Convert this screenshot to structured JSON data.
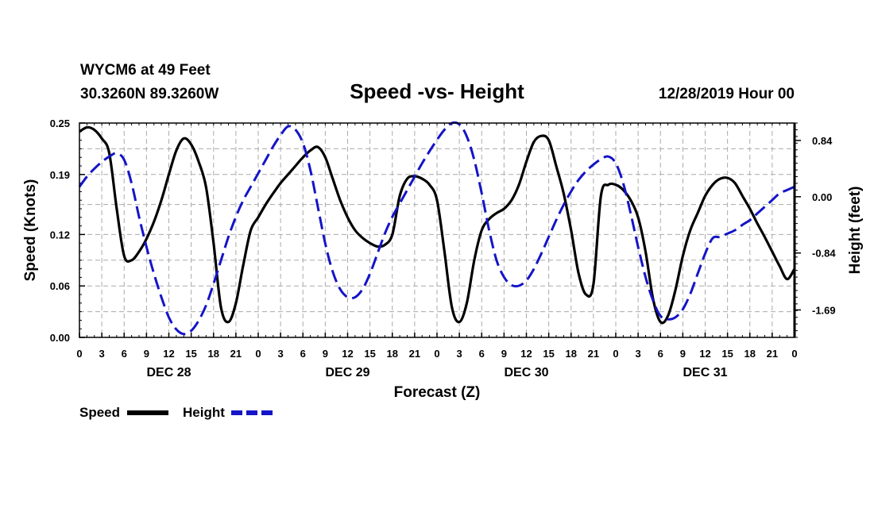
{
  "header": {
    "station": "WYCM6 at 49 Feet",
    "coords": "30.3260N 89.3260W",
    "title": "Speed -vs- Height",
    "timestamp": "12/28/2019 Hour 00"
  },
  "legend": {
    "speed_label": "Speed",
    "height_label": "Height"
  },
  "colors": {
    "speed": "#000000",
    "height": "#1414c8",
    "grid": "#aaaaaa"
  },
  "chart_data": {
    "type": "line",
    "title": "Speed -vs- Height",
    "xlabel": "Forecast (Z)",
    "ylabel": "Speed (Knots)",
    "ylabel_right": "Height (feet)",
    "xlim": [
      0,
      96
    ],
    "ylim": [
      0,
      0.25
    ],
    "ylim_right": [
      -2.1,
      1.1
    ],
    "x_ticks": [
      0,
      3,
      6,
      9,
      12,
      15,
      18,
      21,
      24,
      27,
      30,
      33,
      36,
      39,
      42,
      45,
      48,
      51,
      54,
      57,
      60,
      63,
      66,
      69,
      72,
      75,
      78,
      81,
      84,
      87,
      90,
      93,
      96
    ],
    "x_tick_labels": [
      "0",
      "3",
      "6",
      "9",
      "12",
      "15",
      "18",
      "21",
      "0",
      "3",
      "6",
      "9",
      "12",
      "15",
      "18",
      "21",
      "0",
      "3",
      "6",
      "9",
      "12",
      "15",
      "18",
      "21",
      "0",
      "3",
      "6",
      "9",
      "12",
      "15",
      "18",
      "21",
      "0"
    ],
    "date_labels": [
      {
        "x": 12,
        "text": "DEC 28"
      },
      {
        "x": 36,
        "text": "DEC 29"
      },
      {
        "x": 60,
        "text": "DEC 30"
      },
      {
        "x": 84,
        "text": "DEC 31"
      }
    ],
    "y_ticks": [
      0.0,
      0.06,
      0.12,
      0.19,
      0.25
    ],
    "y_tick_labels": [
      "0.00",
      "0.06",
      "0.12",
      "0.19",
      "0.25"
    ],
    "y_ticks_right": [
      0.84,
      0.0,
      -0.84,
      -1.69
    ],
    "y_tick_labels_right": [
      "0.84",
      "0.00",
      "-0.84",
      "-1.69"
    ],
    "grid": true,
    "series": [
      {
        "name": "Speed",
        "axis": "left",
        "style": "solid",
        "x": [
          0,
          1,
          2,
          3,
          4,
          5,
          6,
          7,
          8,
          9,
          10,
          11,
          12,
          13,
          14,
          15,
          16,
          17,
          18,
          19,
          20,
          21,
          22,
          23,
          24,
          25,
          26,
          27,
          28,
          29,
          30,
          31,
          32,
          33,
          34,
          35,
          36,
          37,
          38,
          39,
          40,
          41,
          42,
          43,
          44,
          45,
          46,
          47,
          48,
          49,
          50,
          51,
          52,
          53,
          54,
          55,
          56,
          57,
          58,
          59,
          60,
          61,
          62,
          63,
          64,
          65,
          66,
          67,
          68,
          69,
          70,
          71,
          72,
          73,
          74,
          75,
          76,
          77,
          78,
          79,
          80,
          81,
          82,
          83,
          84,
          85,
          86,
          87,
          88,
          89,
          90,
          91,
          92,
          93,
          94,
          95,
          96
        ],
        "values": [
          0.24,
          0.245,
          0.242,
          0.232,
          0.215,
          0.15,
          0.095,
          0.09,
          0.1,
          0.115,
          0.135,
          0.16,
          0.19,
          0.218,
          0.232,
          0.225,
          0.205,
          0.175,
          0.11,
          0.035,
          0.018,
          0.04,
          0.085,
          0.125,
          0.14,
          0.155,
          0.168,
          0.18,
          0.19,
          0.2,
          0.21,
          0.218,
          0.222,
          0.21,
          0.185,
          0.16,
          0.14,
          0.125,
          0.116,
          0.11,
          0.106,
          0.108,
          0.12,
          0.165,
          0.185,
          0.188,
          0.185,
          0.178,
          0.16,
          0.1,
          0.035,
          0.018,
          0.04,
          0.09,
          0.125,
          0.138,
          0.145,
          0.15,
          0.16,
          0.178,
          0.205,
          0.228,
          0.235,
          0.23,
          0.2,
          0.168,
          0.125,
          0.075,
          0.05,
          0.062,
          0.165,
          0.178,
          0.178,
          0.172,
          0.16,
          0.14,
          0.1,
          0.045,
          0.018,
          0.025,
          0.055,
          0.095,
          0.125,
          0.145,
          0.165,
          0.178,
          0.185,
          0.186,
          0.18,
          0.165,
          0.15,
          0.133,
          0.117,
          0.1,
          0.083,
          0.068,
          0.08
        ]
      },
      {
        "name": "Height",
        "axis": "right",
        "style": "dashed",
        "x": [
          0,
          1,
          2,
          3,
          4,
          5,
          6,
          7,
          8,
          9,
          10,
          11,
          12,
          13,
          14,
          15,
          16,
          17,
          18,
          19,
          20,
          21,
          22,
          23,
          24,
          25,
          26,
          27,
          28,
          29,
          30,
          31,
          32,
          33,
          34,
          35,
          36,
          37,
          38,
          39,
          40,
          41,
          42,
          43,
          44,
          45,
          46,
          47,
          48,
          49,
          50,
          51,
          52,
          53,
          54,
          55,
          56,
          57,
          58,
          59,
          60,
          61,
          62,
          63,
          64,
          65,
          66,
          67,
          68,
          69,
          70,
          71,
          72,
          73,
          74,
          75,
          76,
          77,
          78,
          79,
          80,
          81,
          82,
          83,
          84,
          85,
          86,
          87,
          88,
          89,
          90,
          91,
          92,
          93,
          94,
          95,
          96
        ],
        "values": [
          0.15,
          0.3,
          0.42,
          0.52,
          0.6,
          0.65,
          0.55,
          0.2,
          -0.3,
          -0.75,
          -1.15,
          -1.5,
          -1.8,
          -1.98,
          -2.05,
          -2.0,
          -1.85,
          -1.62,
          -1.3,
          -0.95,
          -0.6,
          -0.3,
          -0.05,
          0.15,
          0.35,
          0.55,
          0.75,
          0.92,
          1.05,
          1.0,
          0.8,
          0.4,
          -0.15,
          -0.7,
          -1.12,
          -1.38,
          -1.5,
          -1.5,
          -1.38,
          -1.15,
          -0.85,
          -0.55,
          -0.3,
          -0.1,
          0.1,
          0.3,
          0.5,
          0.68,
          0.85,
          1.0,
          1.1,
          1.08,
          0.9,
          0.55,
          0.05,
          -0.5,
          -0.95,
          -1.2,
          -1.32,
          -1.33,
          -1.25,
          -1.08,
          -0.85,
          -0.6,
          -0.35,
          -0.12,
          0.08,
          0.25,
          0.38,
          0.48,
          0.56,
          0.6,
          0.5,
          0.2,
          -0.25,
          -0.75,
          -1.2,
          -1.55,
          -1.78,
          -1.83,
          -1.8,
          -1.68,
          -1.45,
          -1.15,
          -0.85,
          -0.62,
          -0.6,
          -0.55,
          -0.5,
          -0.42,
          -0.35,
          -0.25,
          -0.15,
          -0.05,
          0.05,
          0.1,
          0.15
        ]
      }
    ]
  }
}
